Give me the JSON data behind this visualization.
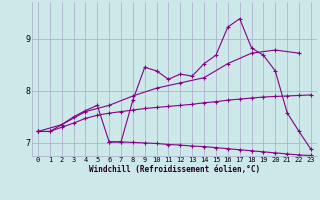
{
  "xlabel": "Windchill (Refroidissement éolien,°C)",
  "bg_color": "#cce8e8",
  "grid_color": "#aaaacc",
  "line_color": "#880088",
  "xlim": [
    -0.5,
    23.5
  ],
  "ylim": [
    6.75,
    9.7
  ],
  "yticks": [
    7,
    8,
    9
  ],
  "xticks": [
    0,
    1,
    2,
    3,
    4,
    5,
    6,
    7,
    8,
    9,
    10,
    11,
    12,
    13,
    14,
    15,
    16,
    17,
    18,
    19,
    20,
    21,
    22,
    23
  ],
  "line1_x": [
    0,
    1,
    2,
    3,
    4,
    5,
    6,
    7,
    8,
    9,
    10,
    11,
    12,
    13,
    14,
    15,
    16,
    17,
    18,
    19,
    20,
    21,
    22,
    23
  ],
  "line1_y": [
    7.22,
    7.22,
    7.3,
    7.38,
    7.47,
    7.53,
    7.57,
    7.6,
    7.63,
    7.66,
    7.68,
    7.7,
    7.72,
    7.74,
    7.77,
    7.79,
    7.82,
    7.84,
    7.86,
    7.88,
    7.89,
    7.9,
    7.91,
    7.92
  ],
  "line2_x": [
    0,
    1,
    2,
    3,
    4,
    5,
    6,
    7,
    8,
    9,
    10,
    11,
    12,
    13,
    14,
    15,
    16,
    17,
    18,
    19,
    20,
    21,
    22,
    23
  ],
  "line2_y": [
    7.22,
    7.22,
    7.35,
    7.5,
    7.62,
    7.72,
    7.02,
    7.02,
    7.82,
    8.45,
    8.38,
    8.22,
    8.32,
    8.28,
    8.52,
    8.68,
    9.22,
    9.38,
    8.82,
    8.68,
    8.38,
    7.58,
    7.22,
    6.88
  ],
  "line3_x": [
    0,
    2,
    4,
    6,
    8,
    10,
    12,
    14,
    16,
    18,
    20,
    22
  ],
  "line3_y": [
    7.22,
    7.35,
    7.6,
    7.72,
    7.9,
    8.05,
    8.15,
    8.25,
    8.52,
    8.72,
    8.78,
    8.72
  ],
  "line4_x": [
    6,
    7,
    8,
    9,
    10,
    11,
    12,
    13,
    14,
    15,
    16,
    17,
    18,
    19,
    20,
    21,
    22,
    23
  ],
  "line4_y": [
    7.02,
    7.02,
    7.01,
    7.0,
    6.99,
    6.97,
    6.96,
    6.94,
    6.93,
    6.91,
    6.89,
    6.87,
    6.85,
    6.83,
    6.81,
    6.79,
    6.77,
    6.76
  ]
}
